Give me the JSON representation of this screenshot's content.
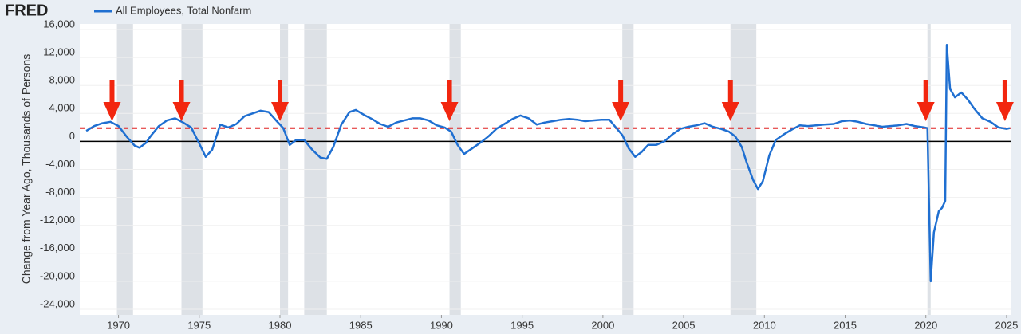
{
  "logo": "FRED",
  "chart_data": {
    "type": "line",
    "y_label": "Change from Year Ago, Thousands of Persons",
    "series": [
      {
        "name": "All Employees, Total Nonfarm",
        "color": "#1f6fd1",
        "x": [
          1968.0,
          1968.5,
          1969.0,
          1969.5,
          1970.0,
          1970.5,
          1971.0,
          1971.3,
          1971.7,
          1972.0,
          1972.5,
          1973.0,
          1973.5,
          1974.0,
          1974.5,
          1975.0,
          1975.4,
          1975.8,
          1976.3,
          1976.8,
          1977.3,
          1977.8,
          1978.3,
          1978.8,
          1979.3,
          1979.8,
          1980.2,
          1980.6,
          1981.0,
          1981.5,
          1982.0,
          1982.5,
          1982.9,
          1983.3,
          1983.8,
          1984.3,
          1984.7,
          1985.2,
          1985.7,
          1986.2,
          1986.7,
          1987.2,
          1987.7,
          1988.2,
          1988.7,
          1989.2,
          1989.7,
          1990.2,
          1990.6,
          1991.0,
          1991.4,
          1991.9,
          1992.4,
          1992.9,
          1993.4,
          1993.9,
          1994.4,
          1994.9,
          1995.4,
          1995.9,
          1996.4,
          1996.9,
          1997.4,
          1997.9,
          1998.4,
          1998.9,
          1999.4,
          1999.9,
          2000.4,
          2000.8,
          2001.2,
          2001.6,
          2002.0,
          2002.4,
          2002.8,
          2003.3,
          2003.8,
          2004.3,
          2004.8,
          2005.3,
          2005.8,
          2006.3,
          2006.8,
          2007.3,
          2007.8,
          2008.2,
          2008.6,
          2008.9,
          2009.3,
          2009.6,
          2009.9,
          2010.3,
          2010.7,
          2011.2,
          2011.7,
          2012.2,
          2012.7,
          2013.2,
          2013.7,
          2014.3,
          2014.8,
          2015.3,
          2015.8,
          2016.3,
          2016.8,
          2017.3,
          2017.8,
          2018.3,
          2018.8,
          2019.3,
          2019.9,
          2020.1,
          2020.3,
          2020.5,
          2020.8,
          2021.0,
          2021.2,
          2021.3,
          2021.5,
          2021.8,
          2022.2,
          2022.6,
          2023.0,
          2023.5,
          2024.0,
          2024.5,
          2025.0,
          2025.2
        ],
        "values": [
          1500,
          2200,
          2600,
          2800,
          2200,
          700,
          -600,
          -900,
          -200,
          800,
          2200,
          3000,
          3300,
          2700,
          2000,
          -300,
          -2200,
          -1200,
          2400,
          2000,
          2500,
          3600,
          4000,
          4400,
          4200,
          2900,
          1900,
          -500,
          200,
          200,
          -1200,
          -2300,
          -2500,
          -800,
          2400,
          4200,
          4500,
          3800,
          3200,
          2500,
          2100,
          2700,
          3000,
          3300,
          3300,
          3000,
          2300,
          2000,
          1400,
          -500,
          -1800,
          -1000,
          -200,
          700,
          1800,
          2500,
          3200,
          3700,
          3300,
          2400,
          2700,
          2900,
          3100,
          3200,
          3100,
          2900,
          3000,
          3100,
          3100,
          2000,
          900,
          -1000,
          -2200,
          -1500,
          -500,
          -500,
          0,
          1000,
          1800,
          2100,
          2300,
          2600,
          2100,
          1800,
          1400,
          700,
          -800,
          -3000,
          -5500,
          -6800,
          -5700,
          -2000,
          200,
          1000,
          1700,
          2300,
          2200,
          2300,
          2400,
          2500,
          2900,
          3000,
          2800,
          2500,
          2300,
          2100,
          2200,
          2300,
          2500,
          2200,
          2000,
          1900,
          -20000,
          -13000,
          -10000,
          -9500,
          -8500,
          13800,
          7500,
          6300,
          7000,
          6000,
          4700,
          3300,
          2800,
          2000,
          1800,
          1900
        ]
      }
    ],
    "xlim": [
      1967.6,
      2025.3
    ],
    "xticks": [
      1970,
      1975,
      1980,
      1985,
      1990,
      1995,
      2000,
      2005,
      2010,
      2015,
      2020,
      2025
    ],
    "ylim": [
      -24800,
      16800
    ],
    "yticks": [
      {
        "value": 16000,
        "label": "16,000"
      },
      {
        "value": 12000,
        "label": "12,000"
      },
      {
        "value": 8000,
        "label": "8,000"
      },
      {
        "value": 4000,
        "label": "4,000"
      },
      0,
      {
        "value": -4000,
        "label": "-4,000"
      },
      {
        "value": -8000,
        "label": "-8,000"
      },
      {
        "value": -12000,
        "label": "-12,000"
      },
      {
        "value": -16000,
        "label": "-16,000"
      },
      {
        "value": -20000,
        "label": "-20,000"
      },
      {
        "value": -24000,
        "label": "-24,000"
      }
    ],
    "recessions": [
      [
        1969.9,
        1970.9
      ],
      [
        1973.9,
        1975.2
      ],
      [
        1980.0,
        1980.5
      ],
      [
        1981.5,
        1982.9
      ],
      [
        1990.5,
        1991.2
      ],
      [
        2001.2,
        2001.9
      ],
      [
        2007.9,
        2009.5
      ],
      [
        2020.1,
        2020.3
      ]
    ],
    "zero_line": 0,
    "reference_line": 1900,
    "annotation_arrows": [
      1969.6,
      1973.9,
      1980.0,
      1990.5,
      2001.1,
      2007.9,
      2020.0,
      2024.9
    ],
    "highlight_box": {
      "x": [
        1970.0,
        1970.0
      ],
      "y": [
        0,
        0
      ]
    }
  }
}
